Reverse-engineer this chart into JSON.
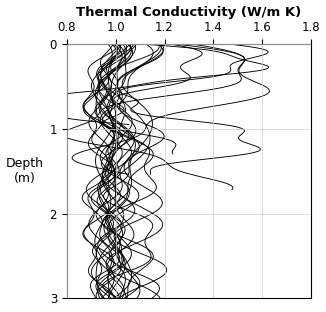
{
  "title": "Thermal Conductivity (W/m K)",
  "ylabel": "Depth\n(m)",
  "xlim": [
    0.8,
    1.8
  ],
  "ylim": [
    0,
    3
  ],
  "xticks": [
    0.8,
    1.0,
    1.2,
    1.4,
    1.6,
    1.8
  ],
  "yticks": [
    0,
    1,
    2,
    3
  ],
  "line_color": "#000000",
  "line_width": 0.65,
  "grid_color": "#cccccc",
  "background_color": "#ffffff",
  "title_fontsize": 9.5,
  "label_fontsize": 9,
  "tick_fontsize": 8.5
}
